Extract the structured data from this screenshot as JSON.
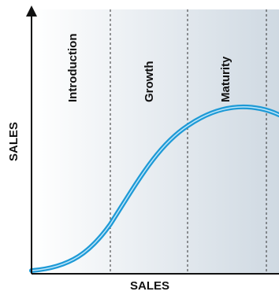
{
  "diagram": {
    "stages": [
      {
        "label": "Introduction"
      },
      {
        "label": "Growth"
      },
      {
        "label": "Maturity"
      }
    ],
    "y_axis_label": "SALES",
    "x_axis_label": "SALES",
    "colors": {
      "curve": "#1e9ad6",
      "curve_highlight": "#bfe6fa",
      "axis": "#111111",
      "divider": "#333333",
      "background_light": "#ffffff",
      "background_dark": "#cfd9e2"
    }
  }
}
